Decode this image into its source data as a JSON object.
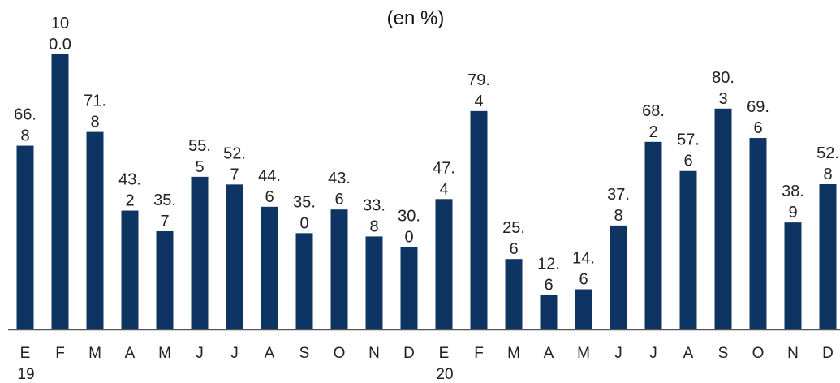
{
  "chart_data": {
    "type": "bar",
    "title": "(en %)",
    "xlabel": "",
    "ylabel": "",
    "ylim": [
      0,
      100
    ],
    "grid": false,
    "categories": [
      "E",
      "F",
      "M",
      "A",
      "M",
      "J",
      "J",
      "A",
      "S",
      "O",
      "N",
      "D",
      "E",
      "F",
      "M",
      "A",
      "M",
      "J",
      "J",
      "A",
      "S",
      "O",
      "N",
      "D"
    ],
    "year_labels": [
      {
        "index": 0,
        "text": "19"
      },
      {
        "index": 12,
        "text": "20"
      }
    ],
    "values": [
      66.8,
      100.0,
      71.8,
      43.2,
      35.7,
      55.5,
      52.7,
      44.6,
      35.0,
      43.6,
      33.8,
      30.0,
      47.4,
      79.4,
      25.6,
      12.6,
      14.6,
      37.8,
      68.2,
      57.6,
      80.3,
      69.6,
      38.9,
      52.8
    ],
    "data_labels": [
      [
        "66.",
        "8"
      ],
      [
        "10",
        "0.0"
      ],
      [
        "71.",
        "8"
      ],
      [
        "43.",
        "2"
      ],
      [
        "35.",
        "7"
      ],
      [
        "55.",
        "5"
      ],
      [
        "52.",
        "7"
      ],
      [
        "44.",
        "6"
      ],
      [
        "35.",
        "0"
      ],
      [
        "43.",
        "6"
      ],
      [
        "33.",
        "8"
      ],
      [
        "30.",
        "0"
      ],
      [
        "47.",
        "4"
      ],
      [
        "79.",
        "4"
      ],
      [
        "25.",
        "6"
      ],
      [
        "12.",
        "6"
      ],
      [
        "14.",
        "6"
      ],
      [
        "37.",
        "8"
      ],
      [
        "68.",
        "2"
      ],
      [
        "57.",
        "6"
      ],
      [
        "80.",
        "3"
      ],
      [
        "69.",
        "6"
      ],
      [
        "38.",
        "9"
      ],
      [
        "52.",
        "8"
      ]
    ],
    "colors": {
      "bar": "#0d3463",
      "axis": "#555555",
      "text": "#222222"
    }
  }
}
